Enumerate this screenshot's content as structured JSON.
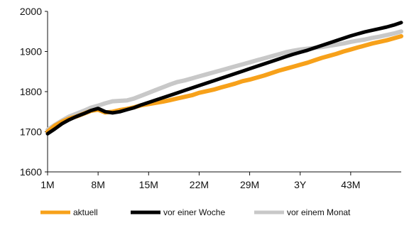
{
  "chart_data": {
    "type": "line",
    "title": "",
    "xlabel": "",
    "ylabel": "",
    "x": [
      "1M",
      "2M",
      "3M",
      "4M",
      "5M",
      "6M",
      "7M",
      "8M",
      "9M",
      "10M",
      "11M",
      "12M",
      "13M",
      "14M",
      "15M",
      "16M",
      "17M",
      "18M",
      "19M",
      "20M",
      "21M",
      "22M",
      "23M",
      "24M",
      "25M",
      "26M",
      "27M",
      "28M",
      "29M",
      "30M",
      "31M",
      "32M",
      "33M",
      "34M",
      "35M",
      "3Y",
      "37M",
      "38M",
      "39M",
      "40M",
      "41M",
      "42M",
      "43M",
      "44M",
      "45M",
      "46M",
      "47M",
      "48M",
      "49M",
      "50M"
    ],
    "x_tick_labels": [
      "1M",
      "8M",
      "15M",
      "22M",
      "29M",
      "3Y",
      "43M"
    ],
    "ylim": [
      1600,
      2000
    ],
    "y_ticks": [
      "1600",
      "1700",
      "1800",
      "1900",
      "2000"
    ],
    "grid": false,
    "legend_position": "bottom",
    "colors": {
      "aktuell": "#f7a11a",
      "vor einer Woche": "#000000",
      "vor einem Monat": "#c8c8c8"
    },
    "series": [
      {
        "name": "vor einem Monat",
        "values": [
          1705,
          1717,
          1728,
          1738,
          1745,
          1752,
          1760,
          1765,
          1771,
          1776,
          1777,
          1778,
          1783,
          1790,
          1797,
          1804,
          1811,
          1818,
          1824,
          1828,
          1833,
          1838,
          1843,
          1848,
          1853,
          1858,
          1863,
          1868,
          1873,
          1878,
          1883,
          1888,
          1893,
          1898,
          1902,
          1905,
          1907,
          1909,
          1911,
          1914,
          1917,
          1920,
          1924,
          1927,
          1930,
          1934,
          1937,
          1941,
          1945,
          1950
        ]
      },
      {
        "name": "aktuell",
        "values": [
          1700,
          1715,
          1725,
          1733,
          1738,
          1745,
          1752,
          1755,
          1748,
          1750,
          1754,
          1757,
          1761,
          1766,
          1769,
          1772,
          1775,
          1779,
          1783,
          1787,
          1791,
          1797,
          1801,
          1805,
          1810,
          1815,
          1820,
          1826,
          1830,
          1835,
          1840,
          1846,
          1852,
          1857,
          1862,
          1867,
          1872,
          1878,
          1884,
          1889,
          1894,
          1900,
          1905,
          1910,
          1915,
          1920,
          1924,
          1928,
          1933,
          1938
        ]
      },
      {
        "name": "vor einer Woche",
        "values": [
          1695,
          1707,
          1720,
          1730,
          1738,
          1745,
          1753,
          1758,
          1750,
          1747,
          1750,
          1755,
          1760,
          1767,
          1773,
          1779,
          1785,
          1791,
          1797,
          1803,
          1809,
          1815,
          1821,
          1827,
          1833,
          1839,
          1845,
          1851,
          1857,
          1863,
          1869,
          1875,
          1881,
          1887,
          1893,
          1898,
          1903,
          1909,
          1915,
          1921,
          1927,
          1933,
          1939,
          1944,
          1949,
          1953,
          1957,
          1961,
          1966,
          1972
        ]
      }
    ]
  }
}
